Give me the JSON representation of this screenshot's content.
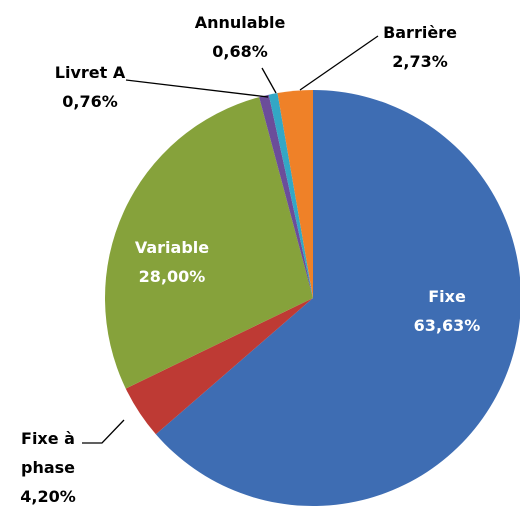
{
  "chart_data": {
    "type": "pie",
    "categories": [
      "Fixe",
      "Fixe à phase",
      "Variable",
      "Livret A",
      "Annulable",
      "Barrière"
    ],
    "values": [
      63.63,
      4.2,
      28.0,
      0.76,
      0.68,
      2.73
    ],
    "value_labels": [
      "63,63%",
      "4,20%",
      "28,00%",
      "0,76%",
      "0,68%",
      "2,73%"
    ],
    "colors": [
      "#3e6db3",
      "#be3a34",
      "#86a23b",
      "#6b4d9a",
      "#33a7c5",
      "#ef8128"
    ]
  }
}
